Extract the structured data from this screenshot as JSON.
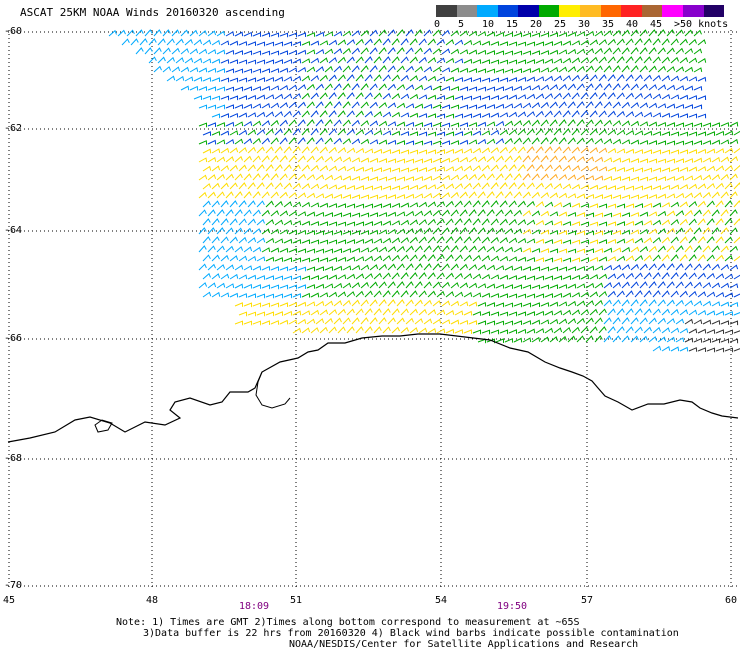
{
  "title": "ASCAT 25KM NOAA Winds 20160320 ascending",
  "legend": {
    "colors": [
      "#404040",
      "#8c8c8c",
      "#00aaff",
      "#0044dd",
      "#0000aa",
      "#00aa00",
      "#ffee00",
      "#ffbb22",
      "#ff6600",
      "#ff2222",
      "#aa6633",
      "#ff00ff",
      "#8800cc",
      "#220066"
    ],
    "labels": [
      "0",
      "5",
      "10",
      "15",
      "20",
      "25",
      "30",
      "35",
      "40",
      "45",
      ">50 knots"
    ]
  },
  "axes": {
    "y_labels": [
      "-60",
      "-62",
      "-64",
      "-66",
      "-68",
      "-70"
    ],
    "x_labels": [
      "45",
      "48",
      "51",
      "54",
      "57",
      "60"
    ]
  },
  "times": [
    "18:09",
    "19:50"
  ],
  "notes": [
    "Note: 1) Times are GMT 2)Times along bottom correspond to measurement at ~65S",
    "3)Data buffer is 22 hrs from 20160320 4) Black wind barbs indicate possible contamination",
    "NOAA/NESDIS/Center for Satellite Applications and Research"
  ]
}
